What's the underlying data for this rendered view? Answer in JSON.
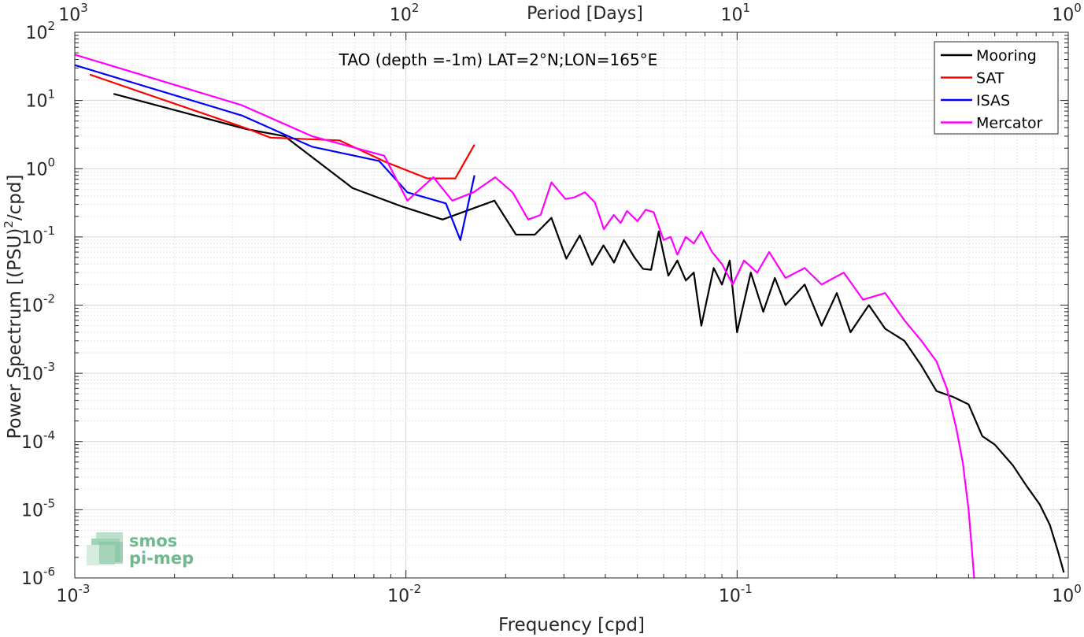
{
  "chart_data": {
    "type": "line",
    "title": "TAO (depth =-1m) LAT=2°N;LON=165°E",
    "xlabel": "Frequency [cpd]",
    "ylabel": "Power Spectrum [(PSU)",
    "ylabel_sup": "2",
    "ylabel_tail": "/cpd]",
    "x2label": "Period [Days]",
    "xscale": "log",
    "yscale": "log",
    "xlim": [
      0.001,
      1
    ],
    "ylim": [
      1e-06,
      100
    ],
    "x_ticks": [
      {
        "base": "10",
        "exp": "-3"
      },
      {
        "base": "10",
        "exp": "-2"
      },
      {
        "base": "10",
        "exp": "-1"
      },
      {
        "base": "10",
        "exp": "0"
      }
    ],
    "x2_ticks": [
      {
        "base": "10",
        "exp": "3"
      },
      {
        "base": "10",
        "exp": "2"
      },
      {
        "base": "10",
        "exp": "1"
      },
      {
        "base": "10",
        "exp": "0"
      }
    ],
    "y_ticks": [
      {
        "base": "10",
        "exp": "-6"
      },
      {
        "base": "10",
        "exp": "-5"
      },
      {
        "base": "10",
        "exp": "-4"
      },
      {
        "base": "10",
        "exp": "-3"
      },
      {
        "base": "10",
        "exp": "-2"
      },
      {
        "base": "10",
        "exp": "-1"
      },
      {
        "base": "10",
        "exp": "0"
      },
      {
        "base": "10",
        "exp": "1"
      },
      {
        "base": "10",
        "exp": "2"
      }
    ],
    "grid": true,
    "legend_position": "top-right",
    "series": [
      {
        "name": "Mooring",
        "color": "#000000",
        "points": [
          [
            0.00131,
            12.5
          ],
          [
            0.0033,
            3.8
          ],
          [
            0.0043,
            3.0
          ],
          [
            0.0069,
            0.52
          ],
          [
            0.0097,
            0.28
          ],
          [
            0.0129,
            0.18
          ],
          [
            0.0185,
            0.34
          ],
          [
            0.0215,
            0.108
          ],
          [
            0.0245,
            0.108
          ],
          [
            0.0275,
            0.19
          ],
          [
            0.0305,
            0.048
          ],
          [
            0.0335,
            0.105
          ],
          [
            0.0365,
            0.039
          ],
          [
            0.0395,
            0.075
          ],
          [
            0.0425,
            0.042
          ],
          [
            0.0455,
            0.09
          ],
          [
            0.049,
            0.05
          ],
          [
            0.052,
            0.034
          ],
          [
            0.055,
            0.033
          ],
          [
            0.058,
            0.12
          ],
          [
            0.062,
            0.027
          ],
          [
            0.066,
            0.045
          ],
          [
            0.07,
            0.023
          ],
          [
            0.074,
            0.03
          ],
          [
            0.078,
            0.005
          ],
          [
            0.085,
            0.035
          ],
          [
            0.09,
            0.02
          ],
          [
            0.095,
            0.045
          ],
          [
            0.1,
            0.004
          ],
          [
            0.11,
            0.03
          ],
          [
            0.12,
            0.008
          ],
          [
            0.13,
            0.025
          ],
          [
            0.14,
            0.01
          ],
          [
            0.16,
            0.02
          ],
          [
            0.18,
            0.005
          ],
          [
            0.2,
            0.015
          ],
          [
            0.22,
            0.004
          ],
          [
            0.25,
            0.01
          ],
          [
            0.28,
            0.0045
          ],
          [
            0.32,
            0.003
          ],
          [
            0.36,
            0.0013
          ],
          [
            0.4,
            0.00055
          ],
          [
            0.45,
            0.00045
          ],
          [
            0.5,
            0.00035
          ],
          [
            0.55,
            0.00012
          ],
          [
            0.6,
            9e-05
          ],
          [
            0.68,
            4.5e-05
          ],
          [
            0.75,
            2.2e-05
          ],
          [
            0.82,
            1.2e-05
          ],
          [
            0.88,
            6e-06
          ],
          [
            0.93,
            2.5e-06
          ],
          [
            0.97,
            1.2e-06
          ]
        ]
      },
      {
        "name": "SAT",
        "color": "#ff0000",
        "points": [
          [
            0.00111,
            24
          ],
          [
            0.0033,
            3.9
          ],
          [
            0.0039,
            2.85
          ],
          [
            0.0063,
            2.6
          ],
          [
            0.0087,
            1.25
          ],
          [
            0.0116,
            0.72
          ],
          [
            0.0141,
            0.72
          ],
          [
            0.0161,
            2.25
          ]
        ]
      },
      {
        "name": "ISAS",
        "color": "#0000ff",
        "points": [
          [
            0.001,
            33
          ],
          [
            0.0032,
            6.0
          ],
          [
            0.0052,
            2.1
          ],
          [
            0.0083,
            1.3
          ],
          [
            0.0101,
            0.45
          ],
          [
            0.0132,
            0.31
          ],
          [
            0.0146,
            0.09
          ],
          [
            0.0161,
            0.8
          ]
        ]
      },
      {
        "name": "Mercator",
        "color": "#ff00ff",
        "points": [
          [
            0.001,
            47
          ],
          [
            0.0032,
            8.5
          ],
          [
            0.0052,
            3.0
          ],
          [
            0.0086,
            1.55
          ],
          [
            0.0101,
            0.34
          ],
          [
            0.0121,
            0.75
          ],
          [
            0.0138,
            0.34
          ],
          [
            0.016,
            0.45
          ],
          [
            0.0186,
            0.75
          ],
          [
            0.021,
            0.45
          ],
          [
            0.0234,
            0.18
          ],
          [
            0.0255,
            0.21
          ],
          [
            0.0275,
            0.63
          ],
          [
            0.0303,
            0.36
          ],
          [
            0.0322,
            0.38
          ],
          [
            0.0347,
            0.45
          ],
          [
            0.0372,
            0.32
          ],
          [
            0.0396,
            0.13
          ],
          [
            0.0424,
            0.21
          ],
          [
            0.0445,
            0.16
          ],
          [
            0.0465,
            0.24
          ],
          [
            0.05,
            0.17
          ],
          [
            0.053,
            0.25
          ],
          [
            0.056,
            0.23
          ],
          [
            0.06,
            0.09
          ],
          [
            0.063,
            0.1
          ],
          [
            0.066,
            0.055
          ],
          [
            0.07,
            0.1
          ],
          [
            0.074,
            0.08
          ],
          [
            0.078,
            0.12
          ],
          [
            0.084,
            0.06
          ],
          [
            0.09,
            0.04
          ],
          [
            0.097,
            0.02
          ],
          [
            0.105,
            0.045
          ],
          [
            0.115,
            0.03
          ],
          [
            0.125,
            0.06
          ],
          [
            0.14,
            0.025
          ],
          [
            0.16,
            0.035
          ],
          [
            0.18,
            0.02
          ],
          [
            0.21,
            0.03
          ],
          [
            0.24,
            0.012
          ],
          [
            0.28,
            0.015
          ],
          [
            0.32,
            0.006
          ],
          [
            0.36,
            0.003
          ],
          [
            0.4,
            0.0015
          ],
          [
            0.43,
            0.0006
          ],
          [
            0.46,
            0.00015
          ],
          [
            0.48,
            5e-05
          ],
          [
            0.5,
            1e-05
          ],
          [
            0.52,
            1e-06
          ]
        ]
      }
    ]
  },
  "logo": {
    "text_line1": "smos",
    "text_line2": "pi-mep"
  }
}
